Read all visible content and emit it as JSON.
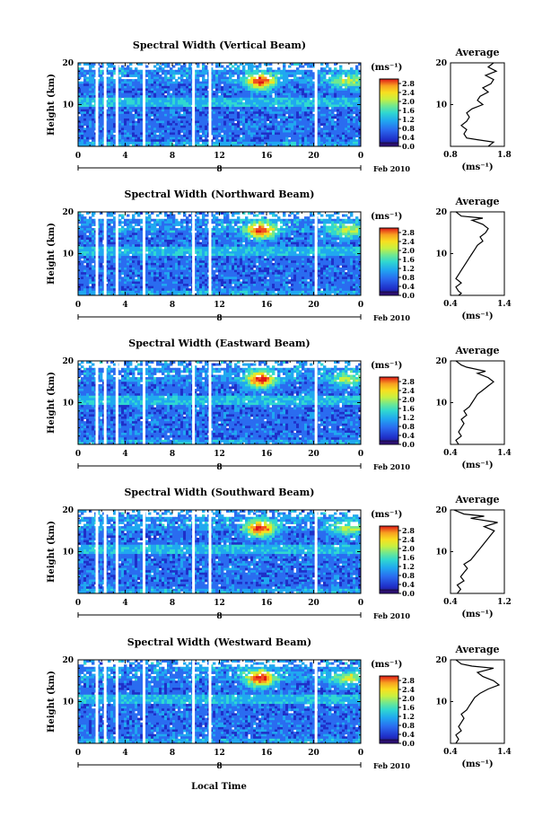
{
  "chart_data": {
    "type": "heatmap",
    "panels": [
      {
        "title": "Spectral Width (Vertical Beam)",
        "avg_ticks": [
          "0.8",
          "1.8"
        ],
        "avg_range": [
          0.8,
          1.8
        ],
        "avg_profile": [
          [
            1.5,
            0
          ],
          [
            1.55,
            0.5
          ],
          [
            1.6,
            1
          ],
          [
            1.3,
            1.6
          ],
          [
            1.1,
            2
          ],
          [
            1.05,
            3
          ],
          [
            1.1,
            4
          ],
          [
            1.0,
            5
          ],
          [
            1.1,
            6
          ],
          [
            1.15,
            7
          ],
          [
            1.1,
            8
          ],
          [
            1.2,
            9
          ],
          [
            1.4,
            10
          ],
          [
            1.3,
            11
          ],
          [
            1.35,
            12
          ],
          [
            1.5,
            13
          ],
          [
            1.4,
            14
          ],
          [
            1.55,
            15
          ],
          [
            1.6,
            16
          ],
          [
            1.45,
            17
          ],
          [
            1.65,
            18
          ],
          [
            1.5,
            19
          ],
          [
            1.6,
            20
          ]
        ]
      },
      {
        "title": "Spectral Width (Northward Beam)",
        "avg_ticks": [
          "0.4",
          "1.4"
        ],
        "avg_range": [
          0.4,
          1.4
        ],
        "avg_profile": [
          [
            0.55,
            0
          ],
          [
            0.6,
            0.5
          ],
          [
            0.55,
            1
          ],
          [
            0.5,
            2
          ],
          [
            0.6,
            3
          ],
          [
            0.5,
            4
          ],
          [
            0.55,
            5
          ],
          [
            0.6,
            6
          ],
          [
            0.65,
            7
          ],
          [
            0.7,
            8
          ],
          [
            0.75,
            9
          ],
          [
            0.8,
            10
          ],
          [
            0.85,
            11
          ],
          [
            0.9,
            12
          ],
          [
            1.0,
            13
          ],
          [
            0.95,
            14
          ],
          [
            1.05,
            15
          ],
          [
            1.1,
            16
          ],
          [
            1.0,
            17
          ],
          [
            0.8,
            18
          ],
          [
            1.0,
            18.5
          ],
          [
            0.6,
            19
          ],
          [
            0.5,
            20
          ]
        ]
      },
      {
        "title": "Spectral Width (Eastward Beam)",
        "avg_ticks": [
          "0.4",
          "1.4"
        ],
        "avg_range": [
          0.4,
          1.4
        ],
        "avg_profile": [
          [
            0.55,
            0
          ],
          [
            0.5,
            1
          ],
          [
            0.6,
            2
          ],
          [
            0.55,
            3
          ],
          [
            0.6,
            4
          ],
          [
            0.65,
            5
          ],
          [
            0.6,
            6
          ],
          [
            0.7,
            7
          ],
          [
            0.65,
            8
          ],
          [
            0.75,
            9
          ],
          [
            0.8,
            10
          ],
          [
            0.85,
            11
          ],
          [
            0.9,
            12
          ],
          [
            1.0,
            13
          ],
          [
            1.1,
            14
          ],
          [
            1.2,
            15
          ],
          [
            1.1,
            16
          ],
          [
            0.9,
            17
          ],
          [
            1.05,
            17.5
          ],
          [
            0.7,
            18.5
          ],
          [
            0.6,
            19
          ],
          [
            0.5,
            20
          ]
        ]
      },
      {
        "title": "Spectral Width (Southward Beam)",
        "avg_ticks": [
          "0.4",
          "1.2"
        ],
        "avg_range": [
          0.4,
          1.2
        ],
        "avg_profile": [
          [
            0.5,
            0
          ],
          [
            0.55,
            1
          ],
          [
            0.5,
            2
          ],
          [
            0.6,
            3
          ],
          [
            0.55,
            4
          ],
          [
            0.6,
            5
          ],
          [
            0.65,
            6
          ],
          [
            0.6,
            7
          ],
          [
            0.7,
            8
          ],
          [
            0.75,
            9
          ],
          [
            0.8,
            10
          ],
          [
            0.85,
            11
          ],
          [
            0.9,
            12
          ],
          [
            0.95,
            13
          ],
          [
            1.0,
            14
          ],
          [
            1.05,
            15
          ],
          [
            0.9,
            16
          ],
          [
            1.1,
            17
          ],
          [
            0.7,
            18
          ],
          [
            0.9,
            18.5
          ],
          [
            0.6,
            19
          ],
          [
            0.45,
            20
          ]
        ]
      },
      {
        "title": "Spectral Width (Westward Beam)",
        "avg_ticks": [
          "0.4",
          "1.4"
        ],
        "avg_range": [
          0.4,
          1.4
        ],
        "avg_profile": [
          [
            0.5,
            0
          ],
          [
            0.55,
            1
          ],
          [
            0.5,
            2
          ],
          [
            0.6,
            3
          ],
          [
            0.55,
            4
          ],
          [
            0.6,
            5
          ],
          [
            0.65,
            6
          ],
          [
            0.6,
            7
          ],
          [
            0.7,
            8
          ],
          [
            0.75,
            9
          ],
          [
            0.8,
            10
          ],
          [
            0.85,
            11
          ],
          [
            0.95,
            12
          ],
          [
            1.1,
            13
          ],
          [
            1.3,
            14
          ],
          [
            1.2,
            15
          ],
          [
            1.0,
            16
          ],
          [
            0.9,
            17
          ],
          [
            1.2,
            18
          ],
          [
            0.8,
            18.5
          ],
          [
            0.6,
            19
          ],
          [
            0.5,
            20
          ]
        ]
      }
    ],
    "ylabel": "Height (km)",
    "y_ticks": [
      "20",
      "10"
    ],
    "ylim": [
      0,
      20
    ],
    "x_ticks": [
      "0",
      "4",
      "8",
      "12",
      "16",
      "20",
      "0"
    ],
    "xlim": [
      0,
      24
    ],
    "xlabel": "Local Time",
    "date_day": "8",
    "date_label": "Feb 2010",
    "colorbar_unit": "(ms⁻¹)",
    "colorbar_ticks": [
      "2.8",
      "2.4",
      "2.0",
      "1.6",
      "1.2",
      "0.8",
      "0.4",
      "0.0"
    ],
    "colorbar_range": [
      0,
      3.0
    ],
    "avg_title": "Average",
    "avg_xlabel": "(ms⁻¹)",
    "avg_y_ticks": [
      "20",
      "10"
    ],
    "data_gaps_hours": [
      1.6,
      2.3,
      3.3,
      5.6,
      9.8,
      11.2,
      20.2
    ],
    "colormap": [
      "#2b1070",
      "#1f2fc8",
      "#2a6cf0",
      "#20a8f0",
      "#30d8d0",
      "#70e890",
      "#c8f040",
      "#f8e020",
      "#f8a020",
      "#f05020",
      "#e01818"
    ]
  }
}
